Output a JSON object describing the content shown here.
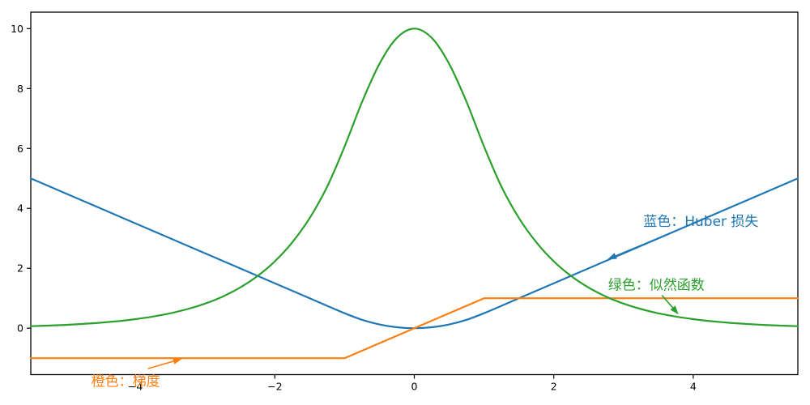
{
  "figure": {
    "background": "#ffffff",
    "spine_color": "#000000"
  },
  "chart_data": {
    "type": "line",
    "title": "",
    "xlabel": "",
    "ylabel": "",
    "xlim": [
      -5.5,
      5.5
    ],
    "ylim": [
      -1.55,
      10.55
    ],
    "grid": false,
    "legend": "none",
    "xticks": {
      "values": [
        -4,
        -2,
        0,
        2,
        4
      ],
      "labels": [
        "−4",
        "−2",
        "0",
        "2",
        "4"
      ]
    },
    "yticks": {
      "values": [
        0,
        2,
        4,
        6,
        8,
        10
      ],
      "labels": [
        "0",
        "2",
        "4",
        "6",
        "8",
        "10"
      ]
    },
    "series": [
      {
        "id": "huber-loss",
        "name": "Huber 损失",
        "color": "#1f77b4",
        "smooth": true,
        "x": [
          -5.5,
          -5,
          -4.5,
          -4,
          -3.5,
          -3,
          -2.5,
          -2,
          -1.5,
          -1,
          -0.75,
          -0.5,
          -0.25,
          0,
          0.25,
          0.5,
          0.75,
          1,
          1.5,
          2,
          2.5,
          3,
          3.5,
          4,
          4.5,
          5,
          5.5
        ],
        "y": [
          5,
          4.5,
          4,
          3.5,
          3,
          2.5,
          2,
          1.5,
          1,
          0.5,
          0.281,
          0.125,
          0.031,
          0,
          0.031,
          0.125,
          0.281,
          0.5,
          1,
          1.5,
          2,
          2.5,
          3,
          3.5,
          4,
          4.5,
          5
        ]
      },
      {
        "id": "gradient",
        "name": "梯度",
        "color": "#ff7f0e",
        "smooth": false,
        "x": [
          -5.5,
          -1,
          1,
          5.5
        ],
        "y": [
          -1,
          -1,
          1,
          1
        ]
      },
      {
        "id": "likelihood",
        "name": "似然函数",
        "color": "#2ca02c",
        "smooth": true,
        "x": [
          -5.5,
          -5.25,
          -5,
          -4.75,
          -4.5,
          -4.25,
          -4,
          -3.75,
          -3.5,
          -3.25,
          -3,
          -2.75,
          -2.5,
          -2.25,
          -2,
          -1.75,
          -1.5,
          -1.25,
          -1,
          -0.75,
          -0.5,
          -0.25,
          0,
          0.25,
          0.5,
          0.75,
          1,
          1.25,
          1.5,
          1.75,
          2,
          2.25,
          2.5,
          2.75,
          3,
          3.25,
          3.5,
          3.75,
          4,
          4.25,
          4.5,
          4.75,
          5,
          5.25,
          5.5
        ],
        "y": [
          0.067,
          0.087,
          0.111,
          0.143,
          0.183,
          0.235,
          0.302,
          0.388,
          0.498,
          0.639,
          0.821,
          1.054,
          1.353,
          1.738,
          2.231,
          2.865,
          3.679,
          4.724,
          6.065,
          7.548,
          8.825,
          9.692,
          10,
          9.692,
          8.825,
          7.548,
          6.065,
          4.724,
          3.679,
          2.865,
          2.231,
          1.738,
          1.353,
          1.054,
          0.821,
          0.639,
          0.498,
          0.388,
          0.302,
          0.235,
          0.183,
          0.143,
          0.111,
          0.087,
          0.067
        ]
      }
    ],
    "annotations": [
      {
        "id": "huber-label",
        "text": "蓝色：Huber 损失",
        "color": "#1f77b4",
        "text_xy": [
          4.11,
          3.57
        ],
        "arrow_from": [
          3.7,
          3.2
        ],
        "arrow_to": [
          2.77,
          2.3
        ]
      },
      {
        "id": "likelihood-label",
        "text": "绿色：似然函数",
        "color": "#2ca02c",
        "text_xy": [
          3.47,
          1.45
        ],
        "arrow_from": [
          3.55,
          1.1
        ],
        "arrow_to": [
          3.79,
          0.46
        ]
      },
      {
        "id": "gradient-label",
        "text": "橙色：梯度",
        "color": "#ff7f0e",
        "text_xy": [
          -4.14,
          -1.76
        ],
        "arrow_from": [
          -3.82,
          -1.35
        ],
        "arrow_to": [
          -3.33,
          -1.02
        ]
      }
    ]
  }
}
